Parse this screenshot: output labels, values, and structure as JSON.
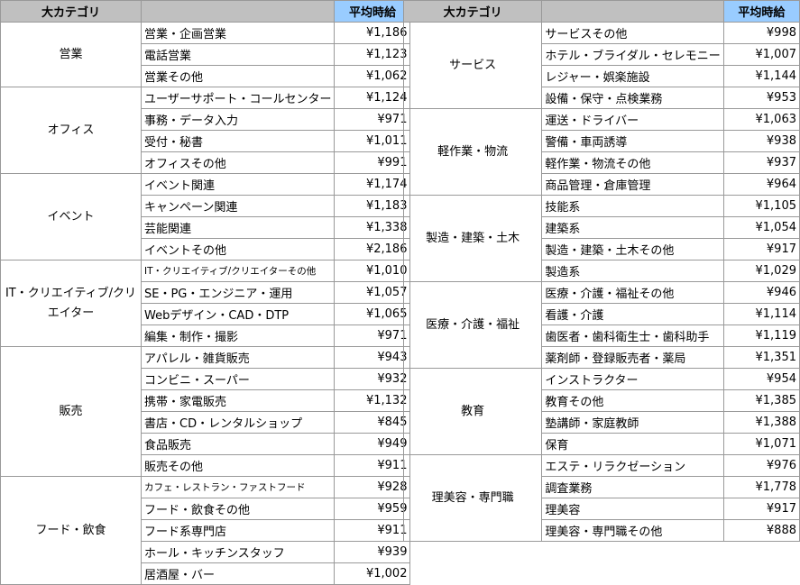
{
  "header": {
    "category": "大カテゴリ",
    "sub": "",
    "price": "平均時給"
  },
  "header_colors": {
    "gray": "#c0c0c0",
    "price": "#99ccff"
  },
  "left": [
    {
      "category": "営業",
      "items": [
        [
          "営業・企画営業",
          "¥1,186"
        ],
        [
          "電話営業",
          "¥1,123"
        ],
        [
          "営業その他",
          "¥1,062"
        ]
      ]
    },
    {
      "category": "オフィス",
      "items": [
        [
          "ユーザーサポート・コールセンター",
          "¥1,124"
        ],
        [
          "事務・データ入力",
          "¥971"
        ],
        [
          "受付・秘書",
          "¥1,011"
        ],
        [
          "オフィスその他",
          "¥991"
        ]
      ]
    },
    {
      "category": "イベント",
      "items": [
        [
          "イベント関連",
          "¥1,174"
        ],
        [
          "キャンペーン関連",
          "¥1,183"
        ],
        [
          "芸能関連",
          "¥1,338"
        ],
        [
          "イベントその他",
          "¥2,186"
        ]
      ]
    },
    {
      "category": "IT・クリエイティブ/クリエイター",
      "items": [
        [
          "IT・クリエイティブ/クリエイターその他",
          "¥1,010"
        ],
        [
          "SE・PG・エンジニア・運用",
          "¥1,057"
        ],
        [
          "Webデザイン・CAD・DTP",
          "¥1,065"
        ],
        [
          "編集・制作・撮影",
          "¥971"
        ]
      ]
    },
    {
      "category": "販売",
      "items": [
        [
          "アパレル・雑貨販売",
          "¥943"
        ],
        [
          "コンビニ・スーパー",
          "¥932"
        ],
        [
          "携帯・家電販売",
          "¥1,132"
        ],
        [
          "書店・CD・レンタルショップ",
          "¥845"
        ],
        [
          "食品販売",
          "¥949"
        ],
        [
          "販売その他",
          "¥911"
        ]
      ]
    },
    {
      "category": "フード・飲食",
      "items": [
        [
          "カフェ・レストラン・ファストフード",
          "¥928"
        ],
        [
          "フード・飲食その他",
          "¥959"
        ],
        [
          "フード系専門店",
          "¥911"
        ],
        [
          "ホール・キッチンスタッフ",
          "¥939"
        ],
        [
          "居酒屋・バー",
          "¥1,002"
        ]
      ]
    }
  ],
  "right": [
    {
      "category": "サービス",
      "items": [
        [
          "サービスその他",
          "¥998"
        ],
        [
          "ホテル・ブライダル・セレモニー",
          "¥1,007"
        ],
        [
          "レジャー・娯楽施設",
          "¥1,144"
        ],
        [
          "設備・保守・点検業務",
          "¥953"
        ]
      ]
    },
    {
      "category": "軽作業・物流",
      "items": [
        [
          "運送・ドライバー",
          "¥1,063"
        ],
        [
          "警備・車両誘導",
          "¥938"
        ],
        [
          "軽作業・物流その他",
          "¥937"
        ],
        [
          "商品管理・倉庫管理",
          "¥964"
        ]
      ]
    },
    {
      "category": "製造・建築・土木",
      "items": [
        [
          "技能系",
          "¥1,105"
        ],
        [
          "建築系",
          "¥1,054"
        ],
        [
          "製造・建築・土木その他",
          "¥917"
        ],
        [
          "製造系",
          "¥1,029"
        ]
      ]
    },
    {
      "category": "医療・介護・福祉",
      "items": [
        [
          "医療・介護・福祉その他",
          "¥946"
        ],
        [
          "看護・介護",
          "¥1,114"
        ],
        [
          "歯医者・歯科衛生士・歯科助手",
          "¥1,119"
        ],
        [
          "薬剤師・登録販売者・薬局",
          "¥1,351"
        ]
      ]
    },
    {
      "category": "教育",
      "items": [
        [
          "インストラクター",
          "¥954"
        ],
        [
          "教育その他",
          "¥1,385"
        ],
        [
          "塾講師・家庭教師",
          "¥1,388"
        ],
        [
          "保育",
          "¥1,071"
        ]
      ]
    },
    {
      "category": "理美容・専門職",
      "items": [
        [
          "エステ・リラクゼーション",
          "¥976"
        ],
        [
          "調査業務",
          "¥1,778"
        ],
        [
          "理美容",
          "¥917"
        ],
        [
          "理美容・専門職その他",
          "¥888"
        ]
      ]
    }
  ]
}
